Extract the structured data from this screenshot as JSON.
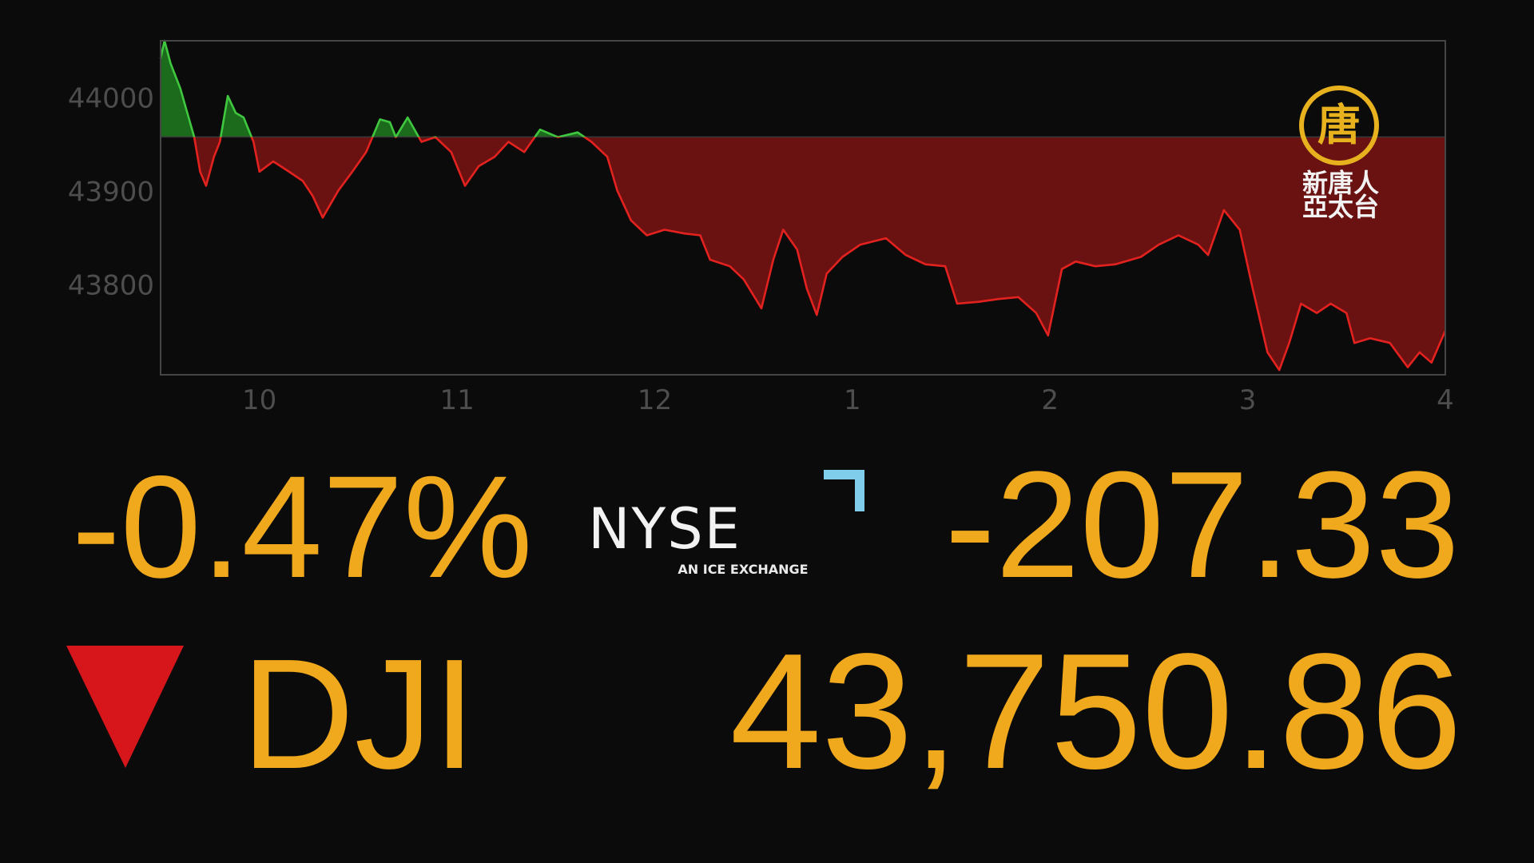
{
  "chart_data": {
    "type": "area",
    "x": [
      9.5,
      9.52,
      9.55,
      9.6,
      9.67,
      9.7,
      9.73,
      9.77,
      9.8,
      9.84,
      9.88,
      9.92,
      9.97,
      10.0,
      10.07,
      10.15,
      10.22,
      10.27,
      10.32,
      10.4,
      10.47,
      10.54,
      10.61,
      10.66,
      10.69,
      10.75,
      10.82,
      10.89,
      10.97,
      11.04,
      11.11,
      11.19,
      11.26,
      11.34,
      11.42,
      11.51,
      11.61,
      11.68,
      11.76,
      11.81,
      11.88,
      11.96,
      12.05,
      12.15,
      12.23,
      12.28,
      12.38,
      12.45,
      12.54,
      12.6,
      12.65,
      12.72,
      12.77,
      12.82,
      12.87,
      12.95,
      13.04,
      13.17,
      13.27,
      13.37,
      13.47,
      13.53,
      13.64,
      13.74,
      13.84,
      13.93,
      13.99,
      14.06,
      14.13,
      14.23,
      14.33,
      14.46,
      14.55,
      14.65,
      14.75,
      14.8,
      14.88,
      14.96,
      15.02,
      15.1,
      15.16,
      15.21,
      15.27,
      15.35,
      15.42,
      15.5,
      15.54,
      15.62,
      15.72,
      15.81,
      15.87,
      15.93,
      16.0
    ],
    "values": [
      44042,
      44061,
      44037,
      44010,
      43958,
      43921,
      43906,
      43937,
      43953,
      44002,
      43984,
      43979,
      43953,
      43921,
      43932,
      43921,
      43911,
      43895,
      43872,
      43901,
      43921,
      43942,
      43977,
      43974,
      43958,
      43979,
      43953,
      43958,
      43942,
      43906,
      43927,
      43937,
      43953,
      43942,
      43966,
      43958,
      43963,
      43953,
      43937,
      43901,
      43869,
      43853,
      43859,
      43855,
      43853,
      43827,
      43820,
      43806,
      43775,
      43827,
      43859,
      43838,
      43796,
      43768,
      43812,
      43830,
      43843,
      43850,
      43832,
      43822,
      43820,
      43780,
      43782,
      43785,
      43787,
      43770,
      43746,
      43817,
      43825,
      43820,
      43822,
      43830,
      43843,
      43853,
      43843,
      43832,
      43880,
      43859,
      43801,
      43728,
      43709,
      43738,
      43780,
      43770,
      43780,
      43770,
      43738,
      43743,
      43738,
      43712,
      43728,
      43717,
      43751
    ],
    "baseline": 43958.19,
    "colors": {
      "up": "#3fc83f",
      "down": "#e3221f",
      "up_fill": "#1c6a1c",
      "down_fill": "#6a1111"
    },
    "xlim": [
      9.5,
      16
    ],
    "ylim": [
      43704,
      44061
    ],
    "xticks": [
      10,
      11,
      12,
      {
        "value": 13,
        "label": "1"
      },
      {
        "value": 14,
        "label": "2"
      },
      {
        "value": 15,
        "label": "3"
      },
      {
        "value": 16,
        "label": "4"
      }
    ],
    "yticks": [
      43800,
      43900,
      44000
    ]
  },
  "quote": {
    "change_percent": "-0.47%",
    "change": "-207.33",
    "symbol": "DJI",
    "price": "43,750.86"
  },
  "exchange_logo": {
    "name": "NYSE",
    "tagline": "AN ICE EXCHANGE"
  },
  "broadcaster_logo": {
    "emblem": "唐",
    "line1": "新唐人",
    "line2": "亞太台"
  }
}
